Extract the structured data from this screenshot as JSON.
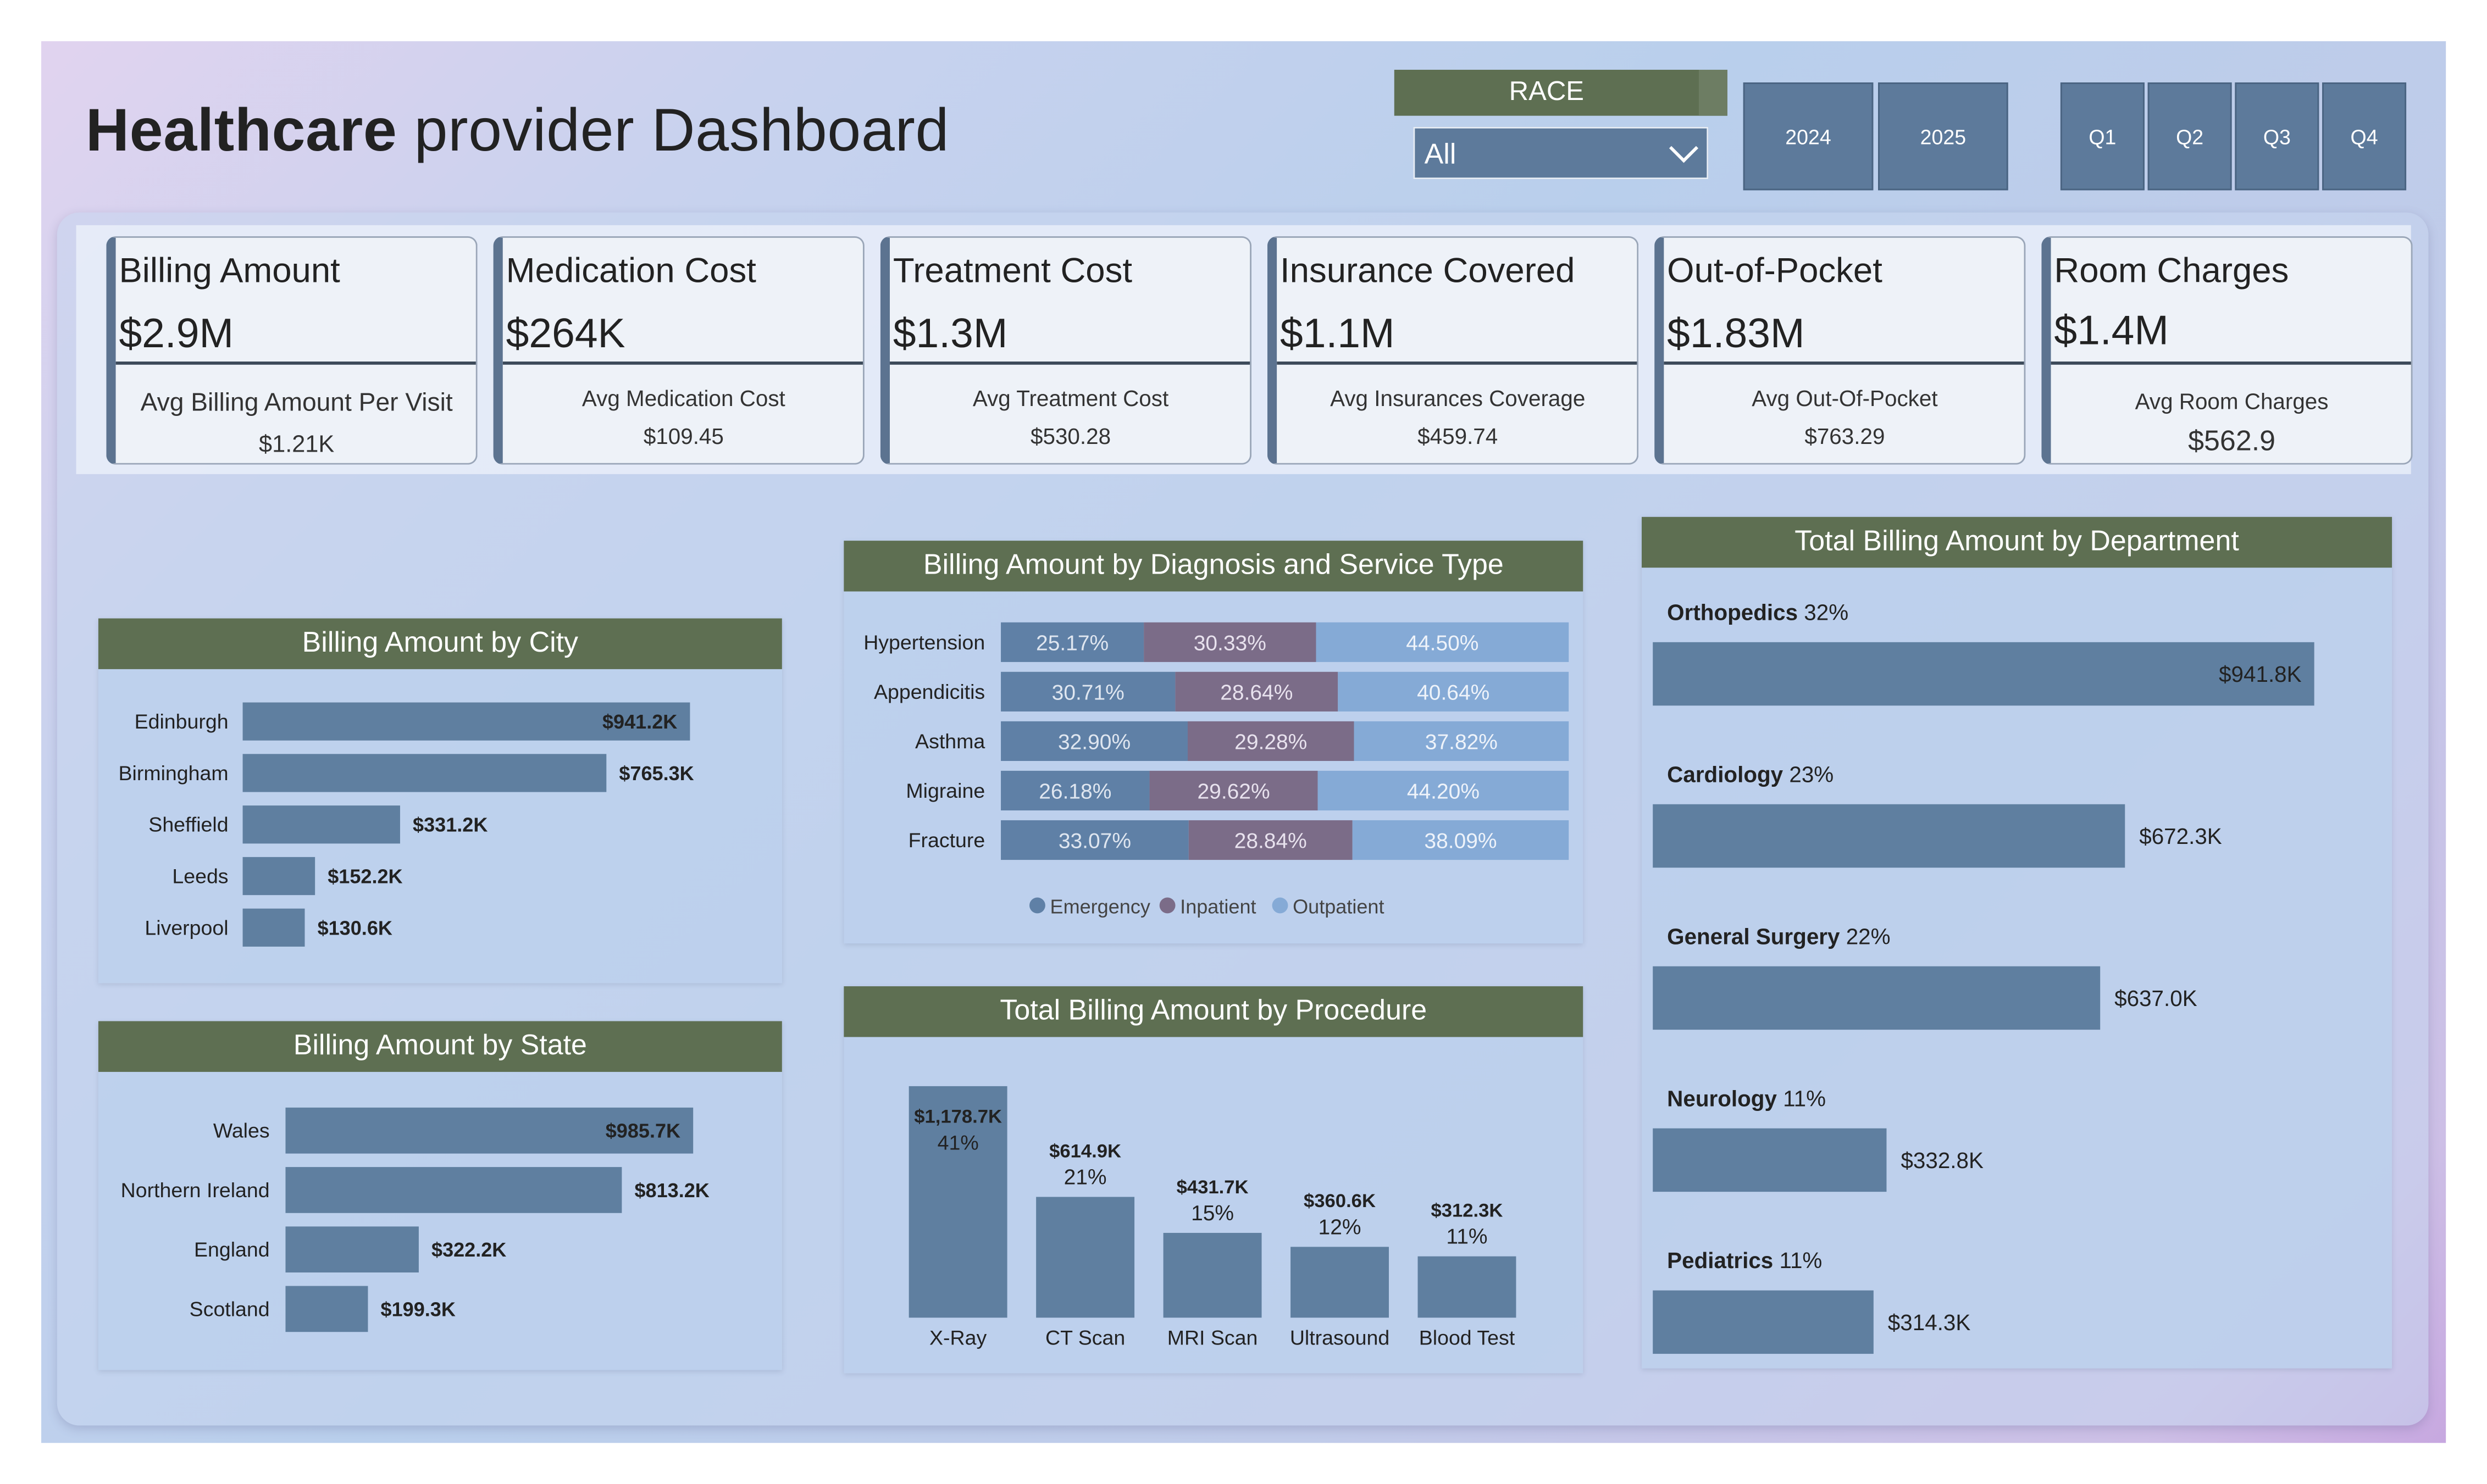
{
  "header": {
    "title_bold": "Healthcare",
    "title_rest": " provider Dashboard"
  },
  "filters": {
    "race_label": "RACE",
    "race_value": "All",
    "years": [
      "2024",
      "2025"
    ],
    "quarters": [
      "Q1",
      "Q2",
      "Q3",
      "Q4"
    ]
  },
  "kpis": [
    {
      "title": "Billing Amount",
      "value": "$2.9M",
      "sub_label": "Avg Billing Amount Per Visit",
      "sub_value": "$1.21K"
    },
    {
      "title": "Medication Cost",
      "value": "$264K",
      "sub_label": "Avg Medication Cost",
      "sub_value": "$109.45"
    },
    {
      "title": "Treatment Cost",
      "value": "$1.3M",
      "sub_label": "Avg Treatment Cost",
      "sub_value": "$530.28"
    },
    {
      "title": "Insurance Covered",
      "value": "$1.1M",
      "sub_label": "Avg Insurances Coverage",
      "sub_value": "$459.74"
    },
    {
      "title": "Out-of-Pocket",
      "value": "$1.83M",
      "sub_label": "Avg Out-Of-Pocket",
      "sub_value": "$763.29"
    },
    {
      "title": "Room Charges",
      "value": "$1.4M",
      "sub_label": "Avg Room Charges",
      "sub_value": "$562.9"
    }
  ],
  "colors": {
    "header_green": "#5e6f52",
    "bar_blue": "#5f7fa0",
    "emergency": "#5f80a6",
    "inpatient": "#7b6c88",
    "outpatient": "#85aad6"
  },
  "chart_data": [
    {
      "id": "city",
      "type": "bar",
      "orientation": "horizontal",
      "title": "Billing Amount by City",
      "categories": [
        "Edinburgh",
        "Birmingham",
        "Sheffield",
        "Leeds",
        "Liverpool"
      ],
      "values": [
        941.2,
        765.3,
        331.2,
        152.2,
        130.6
      ],
      "labels": [
        "$941.2K",
        "$765.3K",
        "$331.2K",
        "$152.2K",
        "$130.6K"
      ],
      "unit": "$K"
    },
    {
      "id": "state",
      "type": "bar",
      "orientation": "horizontal",
      "title": "Billing Amount by State",
      "categories": [
        "Wales",
        "Northern Ireland",
        "England",
        "Scotland"
      ],
      "values": [
        985.7,
        813.2,
        322.2,
        199.3
      ],
      "labels": [
        "$985.7K",
        "$813.2K",
        "$322.2K",
        "$199.3K"
      ],
      "unit": "$K"
    },
    {
      "id": "diagnosis",
      "type": "bar",
      "orientation": "horizontal",
      "stacked": "100%",
      "title": "Billing Amount by Diagnosis and Service Type",
      "categories": [
        "Hypertension",
        "Appendicitis",
        "Asthma",
        "Migraine",
        "Fracture"
      ],
      "series": [
        {
          "name": "Emergency",
          "values": [
            25.17,
            30.71,
            32.9,
            26.18,
            33.07
          ]
        },
        {
          "name": "Inpatient",
          "values": [
            30.33,
            28.64,
            29.28,
            29.62,
            28.84
          ]
        },
        {
          "name": "Outpatient",
          "values": [
            44.5,
            40.64,
            37.82,
            44.2,
            38.09
          ]
        }
      ],
      "legend": "bottom-center"
    },
    {
      "id": "procedure",
      "type": "bar",
      "orientation": "vertical",
      "title": "Total Billing Amount by Procedure",
      "categories": [
        "X-Ray",
        "CT Scan",
        "MRI Scan",
        "Ultrasound",
        "Blood Test"
      ],
      "values": [
        1178.7,
        614.9,
        431.7,
        360.6,
        312.3
      ],
      "labels": [
        "$1,178.7K",
        "$614.9K",
        "$431.7K",
        "$360.6K",
        "$312.3K"
      ],
      "percents": [
        "41%",
        "21%",
        "15%",
        "12%",
        "11%"
      ],
      "unit": "$K"
    },
    {
      "id": "department",
      "type": "bar",
      "orientation": "horizontal",
      "title": "Total Billing Amount by Department",
      "categories": [
        "Orthopedics",
        "Cardiology",
        "General Surgery",
        "Neurology",
        "Pediatrics"
      ],
      "percents": [
        "32%",
        "23%",
        "22%",
        "11%",
        "11%"
      ],
      "values": [
        941.8,
        672.3,
        637.0,
        332.8,
        314.3
      ],
      "labels": [
        "$941.8K",
        "$672.3K",
        "$637.0K",
        "$332.8K",
        "$314.3K"
      ],
      "unit": "$K"
    }
  ]
}
